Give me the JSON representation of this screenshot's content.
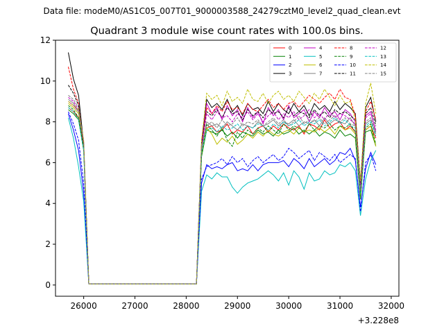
{
  "chart_data": {
    "type": "line",
    "suptitle": "Data file: modeM0/AS1C05_007T01_9000003588_24279cztM0_level2_quad_clean.evt",
    "title": "Quadrant 3 module wise count rates with 100.0s bins.",
    "xlabel": "",
    "ylabel": "",
    "x_offset_text": "+3.228e8",
    "xlim": [
      25450,
      32150
    ],
    "ylim": [
      -0.55,
      12.0
    ],
    "xticks": [
      26000,
      27000,
      28000,
      29000,
      30000,
      31000,
      32000
    ],
    "xtick_labels": [
      "26000",
      "27000",
      "28000",
      "29000",
      "30000",
      "31000",
      "32000"
    ],
    "yticks": [
      0,
      2,
      4,
      6,
      8,
      10,
      12
    ],
    "ytick_labels": [
      "0",
      "2",
      "4",
      "6",
      "8",
      "10",
      "12"
    ],
    "grid": false,
    "legend_position": "top-right",
    "x": [
      25700,
      25800,
      25900,
      26000,
      26100,
      26200,
      26300,
      26400,
      26500,
      26600,
      26700,
      26800,
      26900,
      27000,
      27100,
      27200,
      27300,
      27400,
      27500,
      27600,
      27700,
      27800,
      27900,
      28000,
      28100,
      28200,
      28300,
      28400,
      28500,
      28600,
      28700,
      28800,
      28900,
      29000,
      29100,
      29200,
      29300,
      29400,
      29500,
      29600,
      29700,
      29800,
      29900,
      30000,
      30100,
      30200,
      30300,
      30400,
      30500,
      30600,
      30700,
      30800,
      30900,
      31000,
      31100,
      31200,
      31300,
      31400,
      31500,
      31600,
      31700
    ],
    "series": [
      {
        "name": "0",
        "color": "#ff0000",
        "dash": "solid",
        "values": [
          8.7,
          8.5,
          8.2,
          6.8,
          0.05,
          0.05,
          0.05,
          0.05,
          0.05,
          0.05,
          0.05,
          0.05,
          0.05,
          0.05,
          0.05,
          0.05,
          0.05,
          0.05,
          0.05,
          0.05,
          0.05,
          0.05,
          0.05,
          0.05,
          0.05,
          0.05,
          6.5,
          7.7,
          7.8,
          7.5,
          7.6,
          7.9,
          7.4,
          7.6,
          7.5,
          7.8,
          7.4,
          7.7,
          7.8,
          7.5,
          7.8,
          7.6,
          7.9,
          7.7,
          7.6,
          7.8,
          7.4,
          7.9,
          7.8,
          7.6,
          8.1,
          7.7,
          7.9,
          8.0,
          7.6,
          7.8,
          7.5,
          4.5,
          7.6,
          7.8,
          7.2
        ]
      },
      {
        "name": "1",
        "color": "#008000",
        "dash": "solid",
        "values": [
          8.6,
          8.4,
          8.1,
          6.6,
          0.05,
          0.05,
          0.05,
          0.05,
          0.05,
          0.05,
          0.05,
          0.05,
          0.05,
          0.05,
          0.05,
          0.05,
          0.05,
          0.05,
          0.05,
          0.05,
          0.05,
          0.05,
          0.05,
          0.05,
          0.05,
          0.05,
          6.3,
          7.6,
          7.5,
          7.4,
          7.6,
          7.3,
          7.5,
          7.2,
          7.5,
          7.4,
          7.3,
          7.6,
          7.4,
          7.5,
          7.3,
          7.6,
          7.4,
          7.5,
          7.7,
          7.4,
          7.6,
          7.4,
          7.6,
          7.3,
          7.5,
          7.4,
          7.2,
          7.6,
          7.3,
          7.4,
          7.2,
          4.2,
          7.5,
          7.6,
          6.8
        ]
      },
      {
        "name": "2",
        "color": "#0000ff",
        "dash": "solid",
        "values": [
          8.4,
          7.6,
          6.6,
          4.5,
          0.05,
          0.05,
          0.05,
          0.05,
          0.05,
          0.05,
          0.05,
          0.05,
          0.05,
          0.05,
          0.05,
          0.05,
          0.05,
          0.05,
          0.05,
          0.05,
          0.05,
          0.05,
          0.05,
          0.05,
          0.05,
          0.05,
          5.0,
          5.9,
          5.7,
          5.8,
          5.7,
          5.9,
          6.0,
          5.6,
          5.7,
          5.6,
          5.9,
          5.6,
          5.9,
          6.0,
          6.0,
          6.0,
          6.1,
          5.8,
          6.2,
          6.0,
          5.7,
          6.2,
          5.8,
          6.0,
          6.2,
          5.9,
          6.1,
          6.5,
          6.4,
          6.7,
          6.1,
          3.8,
          5.7,
          6.5,
          5.9
        ]
      },
      {
        "name": "3",
        "color": "#000000",
        "dash": "solid",
        "values": [
          11.4,
          10.1,
          9.3,
          6.9,
          0.05,
          0.05,
          0.05,
          0.05,
          0.05,
          0.05,
          0.05,
          0.05,
          0.05,
          0.05,
          0.05,
          0.05,
          0.05,
          0.05,
          0.05,
          0.05,
          0.05,
          0.05,
          0.05,
          0.05,
          0.05,
          0.05,
          7.0,
          9.1,
          8.7,
          8.9,
          8.6,
          9.1,
          8.5,
          8.8,
          8.3,
          8.9,
          8.6,
          8.7,
          8.4,
          9.0,
          8.5,
          8.9,
          8.6,
          8.4,
          8.9,
          8.5,
          8.8,
          8.3,
          8.9,
          8.6,
          8.8,
          8.5,
          9.0,
          8.6,
          8.9,
          8.7,
          8.4,
          5.0,
          8.7,
          9.2,
          8.0
        ]
      },
      {
        "name": "4",
        "color": "#c000c0",
        "dash": "solid",
        "values": [
          9.0,
          8.8,
          8.5,
          7.0,
          0.05,
          0.05,
          0.05,
          0.05,
          0.05,
          0.05,
          0.05,
          0.05,
          0.05,
          0.05,
          0.05,
          0.05,
          0.05,
          0.05,
          0.05,
          0.05,
          0.05,
          0.05,
          0.05,
          0.05,
          0.05,
          0.05,
          6.9,
          8.9,
          8.4,
          8.7,
          8.1,
          8.8,
          8.3,
          8.6,
          8.0,
          8.7,
          8.2,
          8.5,
          7.9,
          8.7,
          8.3,
          8.6,
          8.1,
          8.8,
          8.2,
          8.4,
          8.6,
          8.0,
          8.5,
          8.2,
          8.7,
          8.3,
          8.5,
          8.1,
          8.6,
          8.4,
          8.0,
          4.9,
          8.3,
          8.5,
          7.5
        ]
      },
      {
        "name": "5",
        "color": "#00bfbf",
        "dash": "solid",
        "values": [
          8.2,
          7.2,
          5.8,
          4.1,
          0.05,
          0.05,
          0.05,
          0.05,
          0.05,
          0.05,
          0.05,
          0.05,
          0.05,
          0.05,
          0.05,
          0.05,
          0.05,
          0.05,
          0.05,
          0.05,
          0.05,
          0.05,
          0.05,
          0.05,
          0.05,
          0.05,
          4.6,
          5.4,
          5.2,
          5.5,
          5.3,
          5.3,
          4.8,
          4.5,
          4.8,
          5.0,
          5.1,
          5.2,
          5.4,
          5.6,
          5.4,
          5.1,
          5.5,
          4.9,
          5.6,
          5.3,
          4.7,
          5.5,
          5.1,
          5.2,
          5.6,
          5.4,
          5.5,
          5.9,
          5.8,
          6.0,
          5.6,
          3.4,
          5.2,
          6.1,
          6.6
        ]
      },
      {
        "name": "6",
        "color": "#bfbf00",
        "dash": "solid",
        "values": [
          8.9,
          8.7,
          8.4,
          6.9,
          0.05,
          0.05,
          0.05,
          0.05,
          0.05,
          0.05,
          0.05,
          0.05,
          0.05,
          0.05,
          0.05,
          0.05,
          0.05,
          0.05,
          0.05,
          0.05,
          0.05,
          0.05,
          0.05,
          0.05,
          0.05,
          0.05,
          6.4,
          7.7,
          7.4,
          6.9,
          7.2,
          7.0,
          7.3,
          6.9,
          7.1,
          7.4,
          7.2,
          7.5,
          7.3,
          7.6,
          7.4,
          7.3,
          7.5,
          7.6,
          7.4,
          7.7,
          7.5,
          7.6,
          7.5,
          7.7,
          7.5,
          7.7,
          7.4,
          7.8,
          7.6,
          7.7,
          7.4,
          4.4,
          7.6,
          7.8,
          6.8
        ]
      },
      {
        "name": "7",
        "color": "#808080",
        "dash": "solid",
        "values": [
          9.1,
          8.9,
          8.5,
          6.9,
          0.05,
          0.05,
          0.05,
          0.05,
          0.05,
          0.05,
          0.05,
          0.05,
          0.05,
          0.05,
          0.05,
          0.05,
          0.05,
          0.05,
          0.05,
          0.05,
          0.05,
          0.05,
          0.05,
          0.05,
          0.05,
          0.05,
          6.7,
          8.0,
          7.8,
          7.9,
          7.7,
          8.0,
          7.8,
          7.6,
          7.9,
          7.8,
          7.7,
          8.0,
          7.8,
          7.9,
          8.1,
          7.8,
          8.0,
          7.9,
          8.1,
          7.8,
          8.0,
          7.9,
          8.1,
          7.8,
          8.2,
          7.9,
          8.1,
          8.0,
          7.9,
          8.2,
          7.8,
          4.6,
          7.9,
          8.1,
          7.4
        ]
      },
      {
        "name": "8",
        "color": "#ff0000",
        "dash": "dashed",
        "values": [
          10.7,
          9.6,
          8.9,
          6.8,
          0.05,
          0.05,
          0.05,
          0.05,
          0.05,
          0.05,
          0.05,
          0.05,
          0.05,
          0.05,
          0.05,
          0.05,
          0.05,
          0.05,
          0.05,
          0.05,
          0.05,
          0.05,
          0.05,
          0.05,
          0.05,
          0.05,
          6.8,
          8.7,
          8.4,
          8.8,
          8.5,
          9.0,
          8.6,
          8.7,
          8.4,
          8.9,
          8.6,
          8.5,
          8.8,
          9.1,
          8.7,
          8.9,
          8.6,
          8.9,
          9.0,
          8.7,
          9.0,
          9.3,
          9.1,
          8.9,
          9.2,
          9.4,
          9.1,
          9.6,
          9.2,
          9.1,
          8.3,
          4.8,
          8.5,
          9.0,
          8.1
        ]
      },
      {
        "name": "9",
        "color": "#008000",
        "dash": "dashed",
        "values": [
          8.8,
          8.6,
          8.2,
          6.7,
          0.05,
          0.05,
          0.05,
          0.05,
          0.05,
          0.05,
          0.05,
          0.05,
          0.05,
          0.05,
          0.05,
          0.05,
          0.05,
          0.05,
          0.05,
          0.05,
          0.05,
          0.05,
          0.05,
          0.05,
          0.05,
          0.05,
          6.4,
          7.9,
          7.6,
          7.3,
          7.7,
          7.1,
          6.8,
          7.5,
          7.2,
          7.6,
          7.4,
          7.7,
          7.5,
          7.8,
          7.6,
          7.4,
          7.9,
          7.6,
          7.8,
          7.7,
          7.5,
          7.9,
          7.6,
          7.8,
          7.7,
          7.9,
          7.6,
          7.8,
          7.7,
          7.9,
          7.5,
          4.3,
          7.7,
          7.9,
          6.9
        ]
      },
      {
        "name": "10",
        "color": "#0000ff",
        "dash": "dashed",
        "values": [
          8.5,
          7.9,
          7.1,
          5.0,
          0.05,
          0.05,
          0.05,
          0.05,
          0.05,
          0.05,
          0.05,
          0.05,
          0.05,
          0.05,
          0.05,
          0.05,
          0.05,
          0.05,
          0.05,
          0.05,
          0.05,
          0.05,
          0.05,
          0.05,
          0.05,
          0.05,
          5.2,
          5.8,
          5.9,
          6.0,
          6.2,
          5.9,
          6.3,
          6.0,
          6.2,
          5.8,
          6.1,
          6.3,
          6.0,
          6.2,
          6.4,
          6.1,
          6.3,
          6.7,
          6.5,
          6.2,
          6.4,
          6.6,
          6.1,
          6.5,
          6.3,
          6.1,
          6.4,
          6.0,
          6.2,
          6.4,
          6.2,
          3.6,
          6.0,
          6.4,
          5.6
        ]
      },
      {
        "name": "11",
        "color": "#000000",
        "dash": "dashed",
        "values": [
          9.8,
          9.4,
          8.8,
          6.9,
          0.05,
          0.05,
          0.05,
          0.05,
          0.05,
          0.05,
          0.05,
          0.05,
          0.05,
          0.05,
          0.05,
          0.05,
          0.05,
          0.05,
          0.05,
          0.05,
          0.05,
          0.05,
          0.05,
          0.05,
          0.05,
          0.05,
          6.9,
          8.5,
          8.3,
          8.6,
          8.2,
          8.7,
          8.4,
          8.5,
          8.1,
          8.6,
          8.3,
          8.5,
          8.2,
          8.6,
          8.4,
          8.5,
          8.2,
          8.7,
          8.3,
          8.5,
          8.4,
          8.2,
          8.6,
          8.3,
          8.5,
          8.2,
          8.6,
          8.4,
          8.5,
          8.3,
          8.1,
          4.8,
          8.4,
          8.7,
          7.8
        ]
      },
      {
        "name": "12",
        "color": "#c000c0",
        "dash": "dashed",
        "values": [
          9.2,
          9.0,
          8.6,
          7.0,
          0.05,
          0.05,
          0.05,
          0.05,
          0.05,
          0.05,
          0.05,
          0.05,
          0.05,
          0.05,
          0.05,
          0.05,
          0.05,
          0.05,
          0.05,
          0.05,
          0.05,
          0.05,
          0.05,
          0.05,
          0.05,
          0.05,
          6.8,
          8.4,
          8.1,
          8.5,
          8.2,
          8.3,
          8.0,
          8.4,
          8.2,
          8.5,
          8.1,
          8.4,
          8.0,
          8.3,
          8.5,
          8.1,
          8.4,
          8.2,
          8.5,
          8.1,
          8.3,
          8.6,
          8.2,
          8.4,
          8.1,
          8.5,
          8.2,
          8.4,
          8.3,
          8.1,
          7.9,
          4.7,
          8.2,
          8.4,
          7.6
        ]
      },
      {
        "name": "13",
        "color": "#00bfbf",
        "dash": "dashed",
        "values": [
          8.7,
          8.5,
          8.1,
          6.6,
          0.05,
          0.05,
          0.05,
          0.05,
          0.05,
          0.05,
          0.05,
          0.05,
          0.05,
          0.05,
          0.05,
          0.05,
          0.05,
          0.05,
          0.05,
          0.05,
          0.05,
          0.05,
          0.05,
          0.05,
          0.05,
          0.05,
          6.5,
          7.6,
          7.7,
          7.5,
          7.8,
          7.6,
          7.7,
          7.9,
          7.6,
          7.8,
          7.7,
          7.9,
          7.8,
          7.6,
          7.9,
          7.7,
          8.0,
          7.8,
          7.9,
          8.1,
          7.8,
          8.0,
          7.9,
          8.1,
          7.8,
          8.0,
          8.2,
          7.9,
          8.1,
          7.8,
          7.7,
          4.5,
          7.8,
          8.0,
          7.3
        ]
      },
      {
        "name": "14",
        "color": "#bfbf00",
        "dash": "dashed",
        "values": [
          9.0,
          8.8,
          8.6,
          7.1,
          0.05,
          0.05,
          0.05,
          0.05,
          0.05,
          0.05,
          0.05,
          0.05,
          0.05,
          0.05,
          0.05,
          0.05,
          0.05,
          0.05,
          0.05,
          0.05,
          0.05,
          0.05,
          0.05,
          0.05,
          0.05,
          0.05,
          7.1,
          9.4,
          9.1,
          9.3,
          8.8,
          9.5,
          9.0,
          9.2,
          8.9,
          9.6,
          9.1,
          9.0,
          9.4,
          8.9,
          9.3,
          9.5,
          9.1,
          9.3,
          9.0,
          9.5,
          9.2,
          8.9,
          9.4,
          9.1,
          9.6,
          9.2,
          8.8,
          9.3,
          8.9,
          9.0,
          8.1,
          5.1,
          8.9,
          9.9,
          8.4
        ]
      },
      {
        "name": "15",
        "color": "#808080",
        "dash": "dashed",
        "values": [
          9.3,
          9.1,
          8.7,
          7.0,
          0.05,
          0.05,
          0.05,
          0.05,
          0.05,
          0.05,
          0.05,
          0.05,
          0.05,
          0.05,
          0.05,
          0.05,
          0.05,
          0.05,
          0.05,
          0.05,
          0.05,
          0.05,
          0.05,
          0.05,
          0.05,
          0.05,
          6.8,
          7.8,
          8.0,
          7.7,
          8.1,
          7.8,
          7.9,
          8.2,
          7.8,
          8.0,
          7.9,
          8.1,
          7.8,
          8.0,
          8.2,
          7.9,
          8.1,
          7.8,
          8.0,
          8.3,
          7.9,
          8.1,
          8.0,
          8.2,
          7.9,
          8.1,
          8.3,
          8.0,
          8.2,
          7.9,
          7.8,
          4.6,
          8.0,
          8.2,
          7.5
        ]
      }
    ]
  }
}
